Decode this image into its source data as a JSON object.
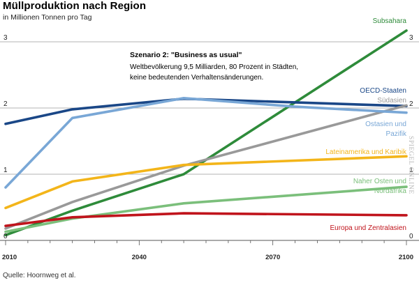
{
  "header": {
    "title": "Müllproduktion nach Region",
    "subtitle": "in Millionen Tonnen pro Tag"
  },
  "footer": {
    "source": "Quelle: Hoornweg et al."
  },
  "watermark": "SPIEGEL ONLINE",
  "annotation": {
    "heading": "Szenario 2: \"Business as usual\"",
    "line1": "Weltbevölkerung 9,5 Milliarden, 80 Prozent in Städten,",
    "line2": "keine bedeutenden Verhaltensänderungen."
  },
  "chart_data": {
    "type": "line",
    "title": "Müllproduktion nach Region",
    "subtitle": "in Millionen Tonnen pro Tag",
    "x_ticks": [
      2010,
      2040,
      2070,
      2100
    ],
    "y_ticks": [
      0,
      1,
      2,
      3
    ],
    "xlim": [
      2010,
      2100
    ],
    "ylim": [
      0,
      3
    ],
    "grid": true,
    "series": [
      {
        "name": "Subsahara",
        "label_lines": [
          "Subsahara"
        ],
        "color": "#2e8b3a",
        "x": [
          2010,
          2025,
          2050,
          2100
        ],
        "y": [
          0.08,
          0.45,
          1.0,
          3.17
        ]
      },
      {
        "name": "OECD-Staaten",
        "label_lines": [
          "OECD-Staaten"
        ],
        "color": "#1a4787",
        "x": [
          2010,
          2025,
          2050,
          2100
        ],
        "y": [
          1.76,
          1.98,
          2.14,
          2.03
        ]
      },
      {
        "name": "Südasien",
        "label_lines": [
          "Südasien"
        ],
        "color": "#999999",
        "x": [
          2010,
          2025,
          2050,
          2100
        ],
        "y": [
          0.18,
          0.58,
          1.13,
          2.04
        ]
      },
      {
        "name": "Ostasien und Pazifik",
        "label_lines": [
          "Ostasien und",
          "Pazifik"
        ],
        "color": "#79a7d6",
        "x": [
          2010,
          2025,
          2050,
          2075,
          2100
        ],
        "y": [
          0.8,
          1.85,
          2.15,
          2.02,
          1.93
        ]
      },
      {
        "name": "Lateinamerika und Karibik",
        "label_lines": [
          "Lateinamerika und Karibik"
        ],
        "color": "#f3b51a",
        "x": [
          2010,
          2025,
          2050,
          2100
        ],
        "y": [
          0.49,
          0.89,
          1.14,
          1.27
        ]
      },
      {
        "name": "Naher Osten und Nordafrika",
        "label_lines": [
          "Naher Osten und",
          "Nordafrika"
        ],
        "color": "#7bbf7b",
        "x": [
          2010,
          2025,
          2050,
          2100
        ],
        "y": [
          0.13,
          0.33,
          0.56,
          0.81
        ]
      },
      {
        "name": "Europa und Zentralasien",
        "label_lines": [
          "Europa und Zentralasien"
        ],
        "color": "#c0141c",
        "x": [
          2010,
          2025,
          2050,
          2100
        ],
        "y": [
          0.22,
          0.35,
          0.41,
          0.38
        ]
      }
    ]
  }
}
